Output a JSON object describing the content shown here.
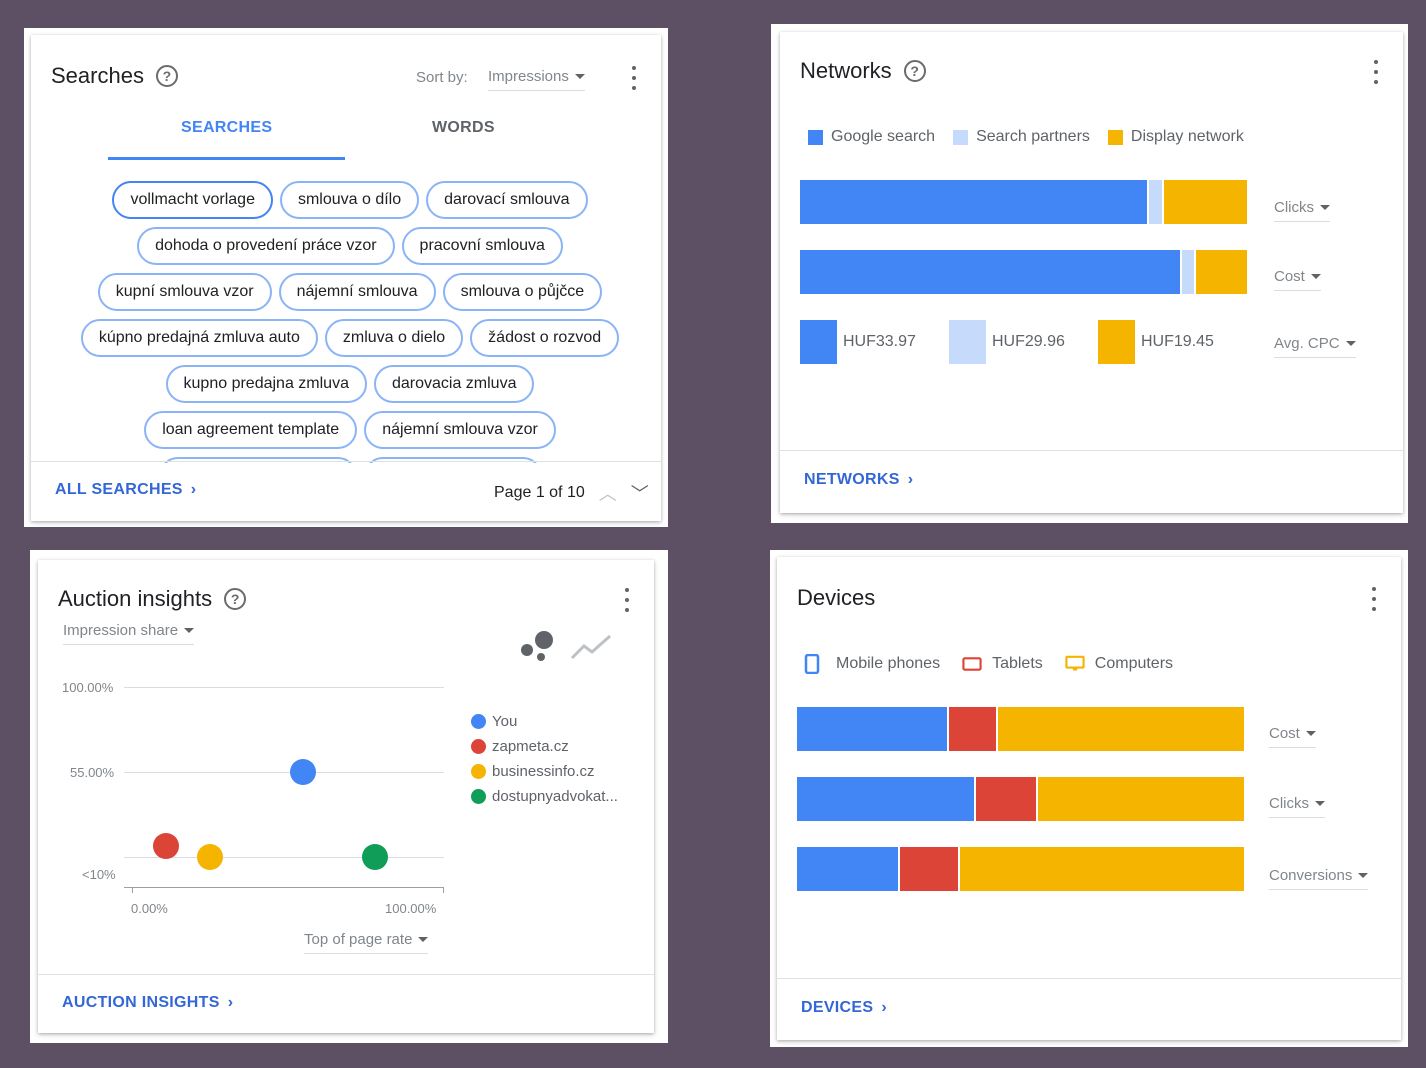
{
  "colors": {
    "background": "#5d5064",
    "google_blue": "#4285f4",
    "light_blue": "#c6dafc",
    "yellow": "#f4b400",
    "red": "#db4437",
    "green": "#0f9d58",
    "link_blue": "#3367d6"
  },
  "searches": {
    "title": "Searches",
    "sort_label": "Sort by:",
    "sort_value": "Impressions",
    "tabs": [
      "SEARCHES",
      "WORDS"
    ],
    "active_tab": "SEARCHES",
    "chips": [
      "vollmacht vorlage",
      "smlouva o dílo",
      "darovací smlouva",
      "dohoda o provedení práce vzor",
      "pracovní smlouva",
      "kupní smlouva vzor",
      "nájemní smlouva",
      "smlouva o půjčce",
      "kúpno predajná zmluva auto",
      "zmluva o dielo",
      "žádost o rozvod",
      "kupno predajna zmluva",
      "darovacia zmluva",
      "loan agreement template",
      "nájemní smlouva vzor",
      "",
      ""
    ],
    "footer_link": "ALL SEARCHES",
    "pager": "Page 1 of 10"
  },
  "networks": {
    "title": "Networks",
    "legend": [
      "Google search",
      "Search partners",
      "Display network"
    ],
    "bars": [
      {
        "metric": "Clicks",
        "shares": [
          0.78,
          0.035,
          0.185
        ]
      },
      {
        "metric": "Cost",
        "shares": [
          0.855,
          0.03,
          0.115
        ]
      }
    ],
    "avg_cpc": {
      "metric": "Avg. CPC",
      "values": [
        "HUF33.97",
        "HUF29.96",
        "HUF19.45"
      ]
    },
    "footer_link": "NETWORKS"
  },
  "auction": {
    "title": "Auction insights",
    "metric": "Impression share",
    "y_ticks": [
      "100.00%",
      "55.00%",
      "<10%"
    ],
    "x_ticks": [
      "0.00%",
      "100.00%"
    ],
    "x_metric": "Top of page rate",
    "legend": [
      "You",
      "zapmeta.cz",
      "businessinfo.cz",
      "dostupnyadvokat..."
    ],
    "footer_link": "AUCTION INSIGHTS"
  },
  "chart_data": {
    "type": "scatter",
    "title": "Auction insights",
    "xlabel": "Top of page rate",
    "ylabel": "Impression share",
    "xlim": [
      0,
      100
    ],
    "y_ticks": [
      "100.00%",
      "55.00%",
      "<10%"
    ],
    "series": [
      {
        "name": "You",
        "color": "#4285f4",
        "x": 55,
        "y": 55
      },
      {
        "name": "zapmeta.cz",
        "color": "#db4437",
        "x": 11,
        "y": 16
      },
      {
        "name": "businessinfo.cz",
        "color": "#f4b400",
        "x": 25,
        "y": 10
      },
      {
        "name": "dostupnyadvokat...",
        "color": "#0f9d58",
        "x": 78,
        "y": 10
      }
    ]
  },
  "devices": {
    "title": "Devices",
    "legend": [
      "Mobile phones",
      "Tablets",
      "Computers"
    ],
    "bars": [
      {
        "metric": "Cost",
        "shares": [
          0.34,
          0.11,
          0.55
        ]
      },
      {
        "metric": "Clicks",
        "shares": [
          0.4,
          0.14,
          0.46
        ]
      },
      {
        "metric": "Conversions",
        "shares": [
          0.23,
          0.135,
          0.635
        ]
      }
    ],
    "footer_link": "DEVICES"
  }
}
